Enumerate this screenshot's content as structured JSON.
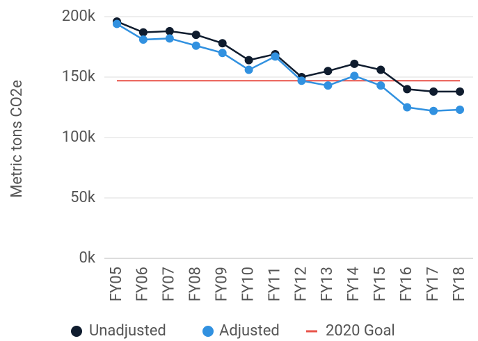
{
  "chart_data": {
    "type": "line",
    "y_label": "Metric tons CO2e",
    "categories": [
      "FY05",
      "FY06",
      "FY07",
      "FY08",
      "FY09",
      "FY10",
      "FY11",
      "FY12",
      "FY13",
      "FY14",
      "FY15",
      "FY16",
      "FY17",
      "FY18"
    ],
    "series": [
      {
        "name": "Unadjusted",
        "color": "#0f1c2e",
        "values": [
          196,
          187,
          188,
          185,
          178,
          164,
          169,
          150,
          155,
          161,
          156,
          140,
          138,
          138
        ]
      },
      {
        "name": "Adjusted",
        "color": "#3191e0",
        "values": [
          194,
          181,
          182,
          176,
          170,
          156,
          167,
          147,
          143,
          151,
          143,
          125,
          122,
          123
        ]
      }
    ],
    "goal": {
      "name": "2020 Goal",
      "color": "#e8534a",
      "value": 147
    },
    "ylim": [
      0,
      200
    ],
    "yticks": [
      {
        "value": 0,
        "label": "0k"
      },
      {
        "value": 50,
        "label": "50k"
      },
      {
        "value": 100,
        "label": "100k"
      },
      {
        "value": 150,
        "label": "150k"
      },
      {
        "value": 200,
        "label": "200k"
      }
    ],
    "grid": true,
    "legend": "bottom"
  }
}
